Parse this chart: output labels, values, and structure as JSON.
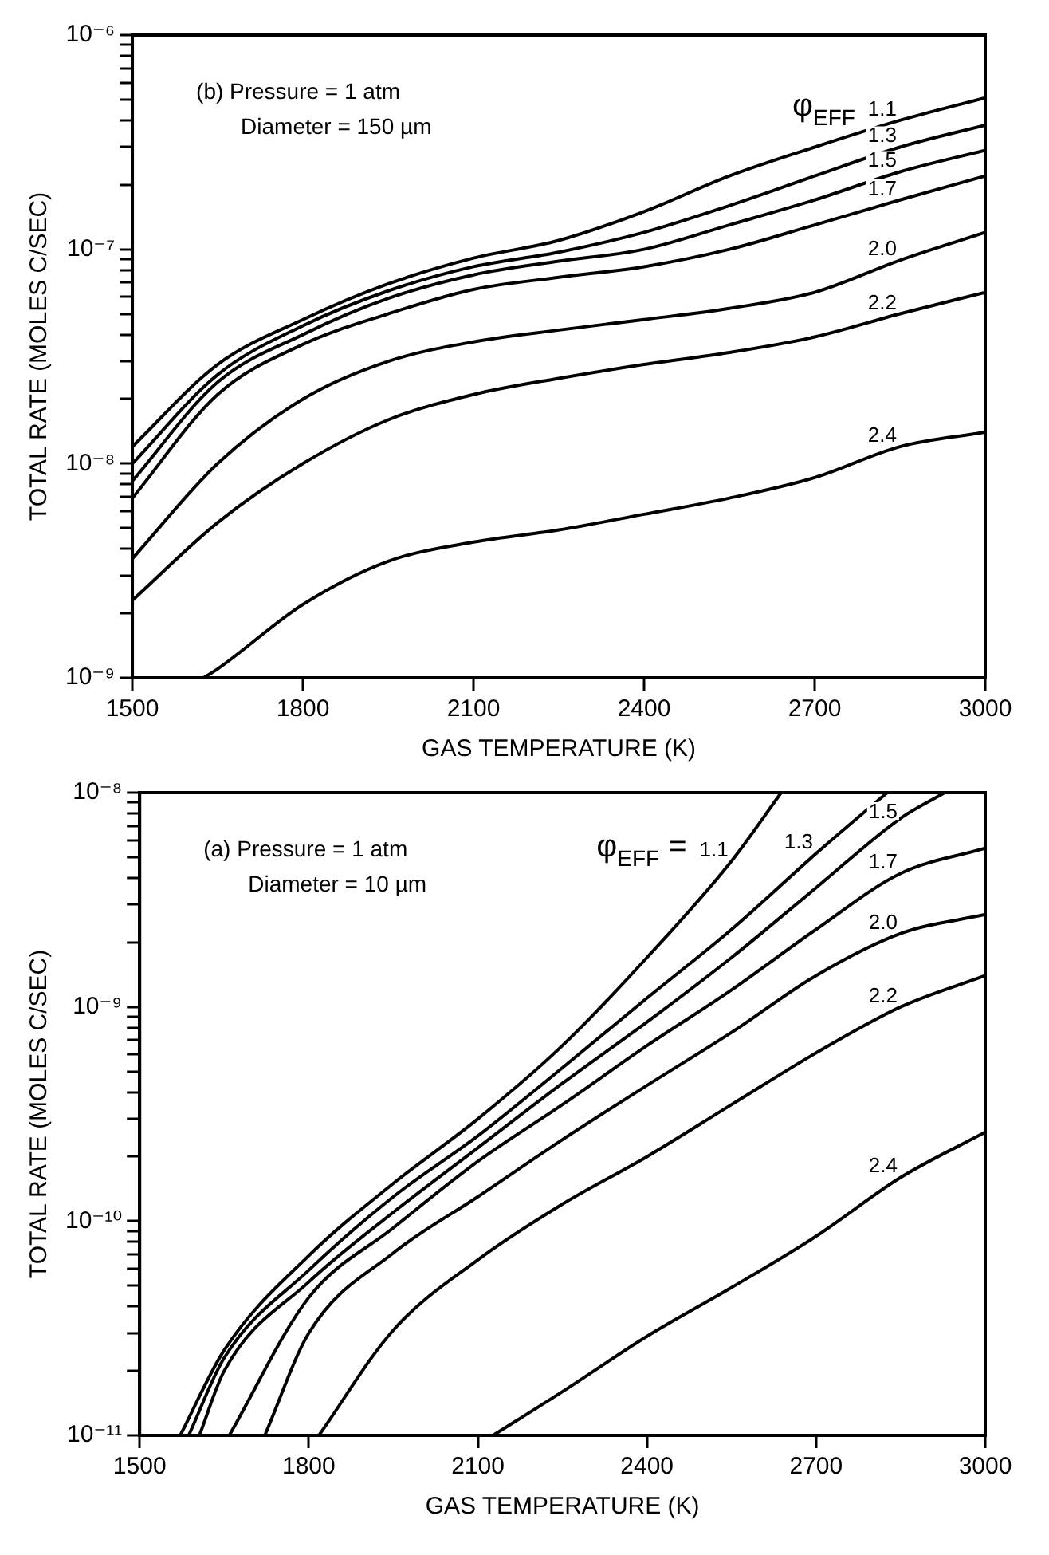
{
  "chart_data": [
    {
      "type": "line",
      "xlabel": "GAS TEMPERATURE (K)",
      "ylabel": "TOTAL RATE (MOLES C/SEC)",
      "legend_title": "φ$_{EFF}$",
      "log": "y",
      "grid": false,
      "legend": false,
      "annotations": [
        "(b) Pressure = 1 atm",
        "Diameter = 150 µm"
      ],
      "xlim": [
        1500,
        3000
      ],
      "xticks": [
        1500,
        1800,
        2100,
        2400,
        2700,
        3000
      ],
      "ylim": [
        1e-09,
        1e-06
      ],
      "yticks": [
        {
          "value": 1e-09,
          "label": "10⁻⁹"
        },
        {
          "value": 2e-09,
          "label": null
        },
        {
          "value": 3e-09,
          "label": null
        },
        {
          "value": 4e-09,
          "label": null
        },
        {
          "value": 5e-09,
          "label": null
        },
        {
          "value": 6e-09,
          "label": null
        },
        {
          "value": 7e-09,
          "label": null
        },
        {
          "value": 8e-09,
          "label": null
        },
        {
          "value": 9e-09,
          "label": null
        },
        {
          "value": 1e-08,
          "label": "10⁻⁸"
        },
        {
          "value": 2e-08,
          "label": null
        },
        {
          "value": 3e-08,
          "label": null
        },
        {
          "value": 4e-08,
          "label": null
        },
        {
          "value": 5e-08,
          "label": null
        },
        {
          "value": 6e-08,
          "label": null
        },
        {
          "value": 7e-08,
          "label": null
        },
        {
          "value": 8e-08,
          "label": null
        },
        {
          "value": 9e-08,
          "label": null
        },
        {
          "value": 1e-07,
          "label": "10⁻⁷"
        },
        {
          "value": 2e-07,
          "label": null
        },
        {
          "value": 3e-07,
          "label": null
        },
        {
          "value": 4e-07,
          "label": null
        },
        {
          "value": 5e-07,
          "label": null
        },
        {
          "value": 6e-07,
          "label": null
        },
        {
          "value": 7e-07,
          "label": null
        },
        {
          "value": 8e-07,
          "label": null
        },
        {
          "value": 9e-07,
          "label": null
        },
        {
          "value": 1e-06,
          "label": "10⁻⁶"
        }
      ],
      "x": [
        1500,
        1650,
        1800,
        1950,
        2100,
        2250,
        2400,
        2550,
        2700,
        2850,
        3000
      ],
      "series": [
        {
          "name": "1.1",
          "color": "#000000",
          "values": [
            1.2e-08,
            2.9e-08,
            4.7e-08,
            6.9e-08,
            9.1e-08,
            1.1e-07,
            1.5e-07,
            2.2e-07,
            3e-07,
            4e-07,
            5.1e-07
          ]
        },
        {
          "name": "1.3",
          "color": "#000000",
          "values": [
            1e-08,
            2.6e-08,
            4.4e-08,
            6.4e-08,
            8.3e-08,
            9.7e-08,
            1.2e-07,
            1.6e-07,
            2.2e-07,
            3e-07,
            3.8e-07
          ]
        },
        {
          "name": "1.5",
          "color": "#000000",
          "values": [
            8.3e-09,
            2.4e-08,
            4e-08,
            5.9e-08,
            7.6e-08,
            8.8e-08,
            1e-07,
            1.3e-07,
            1.7e-07,
            2.3e-07,
            2.9e-07
          ]
        },
        {
          "name": "1.7",
          "color": "#000000",
          "values": [
            6.9e-09,
            2.1e-08,
            3.6e-08,
            5e-08,
            6.5e-08,
            7.4e-08,
            8.3e-08,
            1e-07,
            1.3e-07,
            1.7e-07,
            2.2e-07
          ]
        },
        {
          "name": "2.0",
          "color": "#000000",
          "values": [
            3.6e-09,
            1e-08,
            2e-08,
            3e-08,
            3.7e-08,
            4.2e-08,
            4.7e-08,
            5.3e-08,
            6.3e-08,
            8.9e-08,
            1.2e-07
          ]
        },
        {
          "name": "2.2",
          "color": "#000000",
          "values": [
            2.3e-09,
            5.3e-09,
            1e-08,
            1.6e-08,
            2.1e-08,
            2.5e-08,
            2.9e-08,
            3.3e-08,
            3.9e-08,
            5e-08,
            6.3e-08
          ]
        },
        {
          "name": "2.4",
          "color": "#000000",
          "x": [
            1625,
            1650,
            1800,
            1950,
            2100,
            2250,
            2400,
            2550,
            2700,
            2850,
            3000
          ],
          "values": [
            1e-09,
            1.1e-09,
            2.2e-09,
            3.5e-09,
            4.3e-09,
            4.9e-09,
            5.8e-09,
            6.9e-09,
            8.6e-09,
            1.2e-08,
            1.4e-08
          ]
        }
      ]
    },
    {
      "type": "line",
      "xlabel": "GAS TEMPERATURE (K)",
      "ylabel": "TOTAL RATE (MOLES C/SEC)",
      "legend_title": "φ$_{EFF}$ =",
      "log": "y",
      "grid": false,
      "legend": false,
      "annotations": [
        "(a) Pressure = 1 atm",
        "Diameter = 10 µm"
      ],
      "xlim": [
        1500,
        3000
      ],
      "xticks": [
        1500,
        1800,
        2100,
        2400,
        2700,
        3000
      ],
      "ylim": [
        1e-11,
        1e-08
      ],
      "yticks": [
        {
          "value": 1e-11,
          "label": "10⁻¹¹"
        },
        {
          "value": 2e-11,
          "label": null
        },
        {
          "value": 3e-11,
          "label": null
        },
        {
          "value": 4e-11,
          "label": null
        },
        {
          "value": 5e-11,
          "label": null
        },
        {
          "value": 6e-11,
          "label": null
        },
        {
          "value": 7e-11,
          "label": null
        },
        {
          "value": 8e-11,
          "label": null
        },
        {
          "value": 9e-11,
          "label": null
        },
        {
          "value": 1e-10,
          "label": "10⁻¹⁰"
        },
        {
          "value": 2e-10,
          "label": null
        },
        {
          "value": 3e-10,
          "label": null
        },
        {
          "value": 4e-10,
          "label": null
        },
        {
          "value": 5e-10,
          "label": null
        },
        {
          "value": 6e-10,
          "label": null
        },
        {
          "value": 7e-10,
          "label": null
        },
        {
          "value": 8e-10,
          "label": null
        },
        {
          "value": 9e-10,
          "label": null
        },
        {
          "value": 1e-09,
          "label": "10⁻⁹"
        },
        {
          "value": 2e-09,
          "label": null
        },
        {
          "value": 3e-09,
          "label": null
        },
        {
          "value": 4e-09,
          "label": null
        },
        {
          "value": 5e-09,
          "label": null
        },
        {
          "value": 6e-09,
          "label": null
        },
        {
          "value": 7e-09,
          "label": null
        },
        {
          "value": 8e-09,
          "label": null
        },
        {
          "value": 9e-09,
          "label": null
        },
        {
          "value": 1e-08,
          "label": "10⁻⁸"
        }
      ],
      "series": [
        {
          "name": "1.1",
          "color": "#000000",
          "x": [
            1572,
            1650,
            1800,
            1950,
            2100,
            2250,
            2400,
            2550,
            2638
          ],
          "values": [
            1e-11,
            2.5e-11,
            6.9e-11,
            1.5e-10,
            3e-10,
            6.6e-10,
            1.7e-09,
            4.8e-09,
            1e-08
          ]
        },
        {
          "name": "1.3",
          "color": "#000000",
          "x": [
            1587,
            1650,
            1800,
            1950,
            2100,
            2250,
            2400,
            2550,
            2700,
            2826
          ],
          "values": [
            1e-11,
            2.3e-11,
            5.9e-11,
            1.3e-10,
            2.5e-10,
            5.2e-10,
            1.1e-09,
            2.3e-09,
            5.2e-09,
            1e-08
          ]
        },
        {
          "name": "1.5",
          "color": "#000000",
          "x": [
            1606,
            1650,
            1800,
            1950,
            2100,
            2250,
            2400,
            2550,
            2700,
            2850,
            2928
          ],
          "values": [
            1e-11,
            2e-11,
            5.2e-11,
            1.1e-10,
            2.2e-10,
            4.4e-10,
            8.5e-10,
            1.7e-09,
            3.6e-09,
            7.6e-09,
            1e-08
          ]
        },
        {
          "name": "1.7",
          "color": "#000000",
          "x": [
            1659,
            1800,
            1950,
            2100,
            2250,
            2400,
            2550,
            2700,
            2850,
            3000
          ],
          "values": [
            1e-11,
            4.4e-11,
            9.3e-11,
            1.9e-10,
            3.5e-10,
            6.6e-10,
            1.2e-09,
            2.3e-09,
            4.2e-09,
            5.5e-09
          ]
        },
        {
          "name": "2.0",
          "color": "#000000",
          "x": [
            1722,
            1800,
            1950,
            2100,
            2250,
            2400,
            2550,
            2700,
            2850,
            3000
          ],
          "values": [
            1e-11,
            3e-11,
            7.1e-11,
            1.3e-10,
            2.4e-10,
            4.3e-10,
            7.6e-10,
            1.4e-09,
            2.2e-09,
            2.7e-09
          ]
        },
        {
          "name": "2.2",
          "color": "#000000",
          "x": [
            1818,
            1950,
            2100,
            2250,
            2400,
            2550,
            2700,
            2850,
            3000
          ],
          "values": [
            1e-11,
            3.1e-11,
            6.6e-11,
            1.2e-10,
            2e-10,
            3.5e-10,
            6.1e-10,
            1e-09,
            1.4e-09
          ]
        },
        {
          "name": "2.4",
          "color": "#000000",
          "x": [
            2127,
            2250,
            2400,
            2550,
            2700,
            2850,
            3000
          ],
          "values": [
            1e-11,
            1.6e-11,
            2.9e-11,
            4.9e-11,
            8.5e-11,
            1.6e-10,
            2.6e-10
          ]
        }
      ]
    }
  ]
}
